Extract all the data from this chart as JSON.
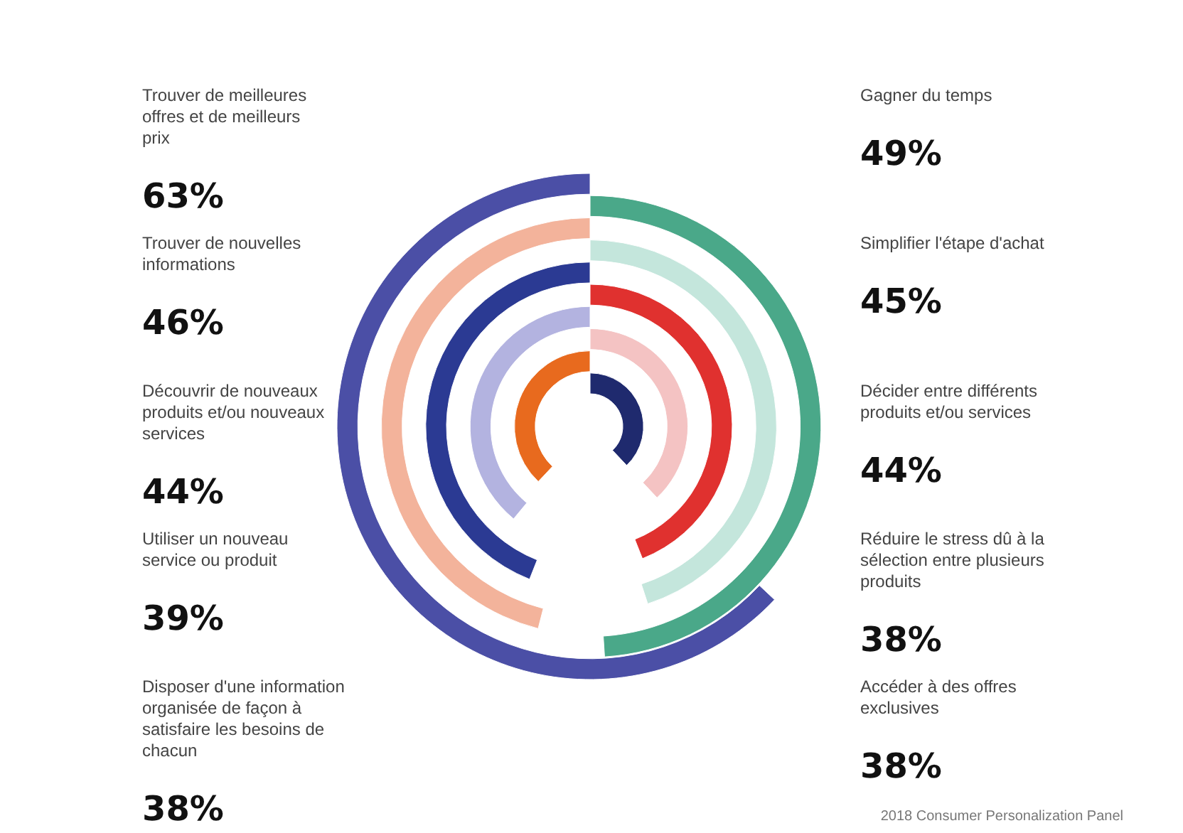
{
  "chart_data": {
    "type": "other",
    "categories": [
      "Trouver de meilleures offres et de meilleurs prix",
      "Gagner du temps",
      "Trouver de nouvelles informations",
      "Simplifier l'étape d'achat",
      "Découvrir de nouveaux produits et/ou nouveaux services",
      "Décider entre différents produits et/ou services",
      "Utiliser un nouveau service ou produit",
      "Réduire le stress dû à la sélection entre plusieurs produits",
      "Disposer d'une information organisée de façon à satisfaire les besoins de chacun",
      "Accéder à des offres exclusives"
    ],
    "values": [
      63,
      49,
      46,
      45,
      44,
      44,
      39,
      38,
      38,
      38
    ],
    "value_labels": [
      "63%",
      "49%",
      "46%",
      "45%",
      "44%",
      "44%",
      "39%",
      "38%",
      "38%",
      "38%"
    ],
    "colors": [
      "#4b4fa6",
      "#4aa889",
      "#f3b39b",
      "#c4e6dc",
      "#2b3a93",
      "#e0312f",
      "#b3b3e0",
      "#f4c3c3",
      "#e86a1e",
      "#1f2a6e"
    ],
    "annotations": [
      "2018 Consumer Personalization Panel"
    ]
  }
}
